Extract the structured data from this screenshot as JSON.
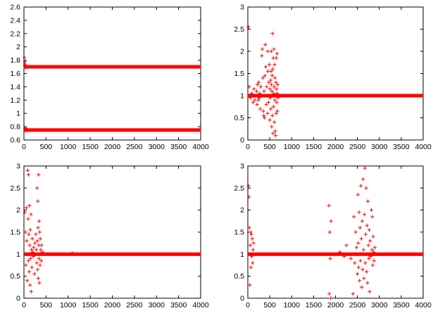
{
  "chart_data": [
    {
      "type": "scatter",
      "title": "",
      "xlabel": "",
      "ylabel": "",
      "marker": "+",
      "color": "#ff0000",
      "xlim": [
        0,
        4000
      ],
      "ylim": [
        0.6,
        2.6
      ],
      "xticks": [
        "0",
        "500",
        "1000",
        "1500",
        "2000",
        "2500",
        "3000",
        "3500",
        "4000"
      ],
      "yticks": [
        "0.6",
        "0.8",
        "1",
        "1.2",
        "1.4",
        "1.6",
        "1.8",
        "2",
        "2.2",
        "2.4",
        "2.6"
      ],
      "bands": [
        {
          "y": 1.7,
          "x_start": 0,
          "x_end": 4000
        },
        {
          "y": 0.75,
          "x_start": 0,
          "x_end": 4000
        }
      ],
      "points": [
        [
          10,
          1.84
        ],
        [
          20,
          1.78
        ],
        [
          30,
          1.74
        ],
        [
          15,
          1.72
        ],
        [
          40,
          1.69
        ],
        [
          25,
          0.77
        ],
        [
          50,
          0.74
        ],
        [
          35,
          0.78
        ]
      ]
    },
    {
      "type": "scatter",
      "title": "",
      "xlabel": "",
      "ylabel": "",
      "marker": "+",
      "color": "#ff0000",
      "xlim": [
        0,
        4000
      ],
      "ylim": [
        0,
        3
      ],
      "xticks": [
        "0",
        "500",
        "1000",
        "1500",
        "2000",
        "2500",
        "3000",
        "3500",
        "4000"
      ],
      "yticks": [
        "0",
        "0.5",
        "1",
        "1.5",
        "2",
        "2.5",
        "3"
      ],
      "bands": [
        {
          "y": 1.0,
          "x_start": 0,
          "x_end": 4000
        }
      ],
      "points": [
        [
          15,
          2.55
        ],
        [
          30,
          1.2
        ],
        [
          60,
          0.95
        ],
        [
          90,
          1.05
        ],
        [
          120,
          0.85
        ],
        [
          140,
          1.15
        ],
        [
          160,
          0.9
        ],
        [
          180,
          1.0
        ],
        [
          200,
          1.1
        ],
        [
          210,
          0.8
        ],
        [
          220,
          1.25
        ],
        [
          240,
          0.9
        ],
        [
          250,
          1.3
        ],
        [
          260,
          0.95
        ],
        [
          270,
          1.05
        ],
        [
          285,
          0.7
        ],
        [
          295,
          1.2
        ],
        [
          320,
          1.9
        ],
        [
          330,
          2.05
        ],
        [
          345,
          1.4
        ],
        [
          355,
          0.65
        ],
        [
          365,
          0.55
        ],
        [
          370,
          1.1
        ],
        [
          380,
          0.5
        ],
        [
          390,
          1.45
        ],
        [
          400,
          2.15
        ],
        [
          410,
          1.65
        ],
        [
          420,
          0.8
        ],
        [
          430,
          1.2
        ],
        [
          440,
          1.0
        ],
        [
          450,
          0.6
        ],
        [
          455,
          2.0
        ],
        [
          460,
          1.55
        ],
        [
          470,
          0.85
        ],
        [
          480,
          1.3
        ],
        [
          490,
          1.7
        ],
        [
          500,
          0.45
        ],
        [
          505,
          1.15
        ],
        [
          510,
          0.95
        ],
        [
          520,
          1.35
        ],
        [
          525,
          0.7
        ],
        [
          530,
          1.55
        ],
        [
          535,
          2.0
        ],
        [
          540,
          1.25
        ],
        [
          545,
          0.3
        ],
        [
          550,
          1.1
        ],
        [
          555,
          1.45
        ],
        [
          560,
          0.55
        ],
        [
          565,
          2.4
        ],
        [
          570,
          1.6
        ],
        [
          575,
          0.15
        ],
        [
          580,
          1.85
        ],
        [
          585,
          0.75
        ],
        [
          590,
          1.05
        ],
        [
          595,
          2.05
        ],
        [
          600,
          1.2
        ],
        [
          605,
          0.4
        ],
        [
          610,
          1.7
        ],
        [
          615,
          0.9
        ],
        [
          620,
          1.4
        ],
        [
          625,
          0.2
        ],
        [
          630,
          1.0
        ],
        [
          635,
          0.1
        ],
        [
          640,
          1.3
        ],
        [
          645,
          0.6
        ],
        [
          650,
          1.85
        ],
        [
          655,
          1.15
        ],
        [
          660,
          0.85
        ],
        [
          665,
          1.95
        ],
        [
          670,
          1.05
        ],
        [
          675,
          0.65
        ],
        [
          680,
          1.25
        ],
        [
          690,
          0.95
        ]
      ]
    },
    {
      "type": "scatter",
      "title": "",
      "xlabel": "",
      "ylabel": "",
      "marker": "+",
      "color": "#ff0000",
      "xlim": [
        0,
        4000
      ],
      "ylim": [
        0,
        3
      ],
      "xticks": [
        "0",
        "500",
        "1000",
        "1500",
        "2000",
        "2500",
        "3000",
        "3500",
        "4000"
      ],
      "yticks": [
        "0",
        "0.5",
        "1",
        "1.5",
        "2",
        "2.5",
        "3"
      ],
      "bands": [
        {
          "y": 1.0,
          "x_start": 0,
          "x_end": 4000
        }
      ],
      "points": [
        [
          20,
          1.95
        ],
        [
          35,
          1.5
        ],
        [
          45,
          0.75
        ],
        [
          55,
          2.05
        ],
        [
          65,
          1.3
        ],
        [
          75,
          0.4
        ],
        [
          85,
          2.9
        ],
        [
          95,
          1.8
        ],
        [
          100,
          0.85
        ],
        [
          105,
          2.8
        ],
        [
          110,
          1.45
        ],
        [
          120,
          0.6
        ],
        [
          125,
          2.1
        ],
        [
          130,
          1.2
        ],
        [
          140,
          0.3
        ],
        [
          145,
          1.55
        ],
        [
          150,
          0.9
        ],
        [
          160,
          1.9
        ],
        [
          165,
          0.15
        ],
        [
          170,
          1.1
        ],
        [
          180,
          0.7
        ],
        [
          190,
          1.35
        ],
        [
          200,
          1.05
        ],
        [
          210,
          0.95
        ],
        [
          220,
          1.15
        ],
        [
          240,
          0.55
        ],
        [
          250,
          1.25
        ],
        [
          270,
          1.45
        ],
        [
          280,
          1.1
        ],
        [
          290,
          0.8
        ],
        [
          300,
          2.5
        ],
        [
          305,
          1.3
        ],
        [
          310,
          0.65
        ],
        [
          315,
          2.2
        ],
        [
          320,
          1.6
        ],
        [
          325,
          0.45
        ],
        [
          330,
          2.8
        ],
        [
          335,
          1.2
        ],
        [
          340,
          0.9
        ],
        [
          345,
          1.75
        ],
        [
          350,
          0.35
        ],
        [
          355,
          1.5
        ],
        [
          360,
          1.0
        ],
        [
          365,
          0.75
        ],
        [
          370,
          1.35
        ],
        [
          380,
          1.1
        ],
        [
          390,
          0.85
        ],
        [
          400,
          1.2
        ],
        [
          420,
          1.05
        ],
        [
          1090,
          1.03
        ]
      ]
    },
    {
      "type": "scatter",
      "title": "",
      "xlabel": "",
      "ylabel": "",
      "marker": "+",
      "color": "#ff0000",
      "xlim": [
        0,
        4000
      ],
      "ylim": [
        0,
        3
      ],
      "xticks": [
        "0",
        "500",
        "1000",
        "1500",
        "2000",
        "2500",
        "3000",
        "3500",
        "4000"
      ],
      "yticks": [
        "0",
        "0.5",
        "1",
        "1.5",
        "2",
        "2.5",
        "3"
      ],
      "bands": [
        {
          "y": 1.0,
          "x_start": 0,
          "x_end": 4000
        }
      ],
      "points": [
        [
          15,
          2.55
        ],
        [
          25,
          2.3
        ],
        [
          35,
          1.6
        ],
        [
          45,
          0.3
        ],
        [
          55,
          1.2
        ],
        [
          65,
          1.5
        ],
        [
          70,
          0.7
        ],
        [
          80,
          1.45
        ],
        [
          90,
          0.95
        ],
        [
          100,
          1.35
        ],
        [
          110,
          0.8
        ],
        [
          120,
          1.1
        ],
        [
          130,
          1.25
        ],
        [
          1850,
          2.1
        ],
        [
          1860,
          0.1
        ],
        [
          1870,
          1.5
        ],
        [
          1880,
          0.9
        ],
        [
          1890,
          0.0
        ],
        [
          1900,
          1.75
        ],
        [
          2000,
          1.0
        ],
        [
          2100,
          1.05
        ],
        [
          2200,
          0.95
        ],
        [
          2250,
          1.2
        ],
        [
          2300,
          1.0
        ],
        [
          2350,
          0.9
        ],
        [
          2400,
          0.1
        ],
        [
          2420,
          1.85
        ],
        [
          2440,
          0.8
        ],
        [
          2460,
          1.5
        ],
        [
          2480,
          1.15
        ],
        [
          2500,
          0.55
        ],
        [
          2510,
          2.35
        ],
        [
          2520,
          1.25
        ],
        [
          2530,
          0.7
        ],
        [
          2540,
          1.95
        ],
        [
          2550,
          0.4
        ],
        [
          2560,
          1.6
        ],
        [
          2570,
          0.85
        ],
        [
          2580,
          2.55
        ],
        [
          2590,
          1.35
        ],
        [
          2600,
          0.25
        ],
        [
          2610,
          1.75
        ],
        [
          2620,
          0.65
        ],
        [
          2630,
          2.7
        ],
        [
          2640,
          1.1
        ],
        [
          2650,
          0.45
        ],
        [
          2660,
          1.9
        ],
        [
          2670,
          2.95
        ],
        [
          2680,
          0.8
        ],
        [
          2690,
          1.45
        ],
        [
          2700,
          2.5
        ],
        [
          2710,
          0.6
        ],
        [
          2720,
          1.65
        ],
        [
          2730,
          0.35
        ],
        [
          2740,
          2.2
        ],
        [
          2750,
          1.2
        ],
        [
          2760,
          0.9
        ],
        [
          2770,
          1.55
        ],
        [
          2780,
          0.15
        ],
        [
          2790,
          1.3
        ],
        [
          2800,
          0.95
        ],
        [
          2820,
          2.0
        ],
        [
          2830,
          1.1
        ],
        [
          2840,
          1.85
        ],
        [
          2850,
          0.75
        ],
        [
          2860,
          1.4
        ],
        [
          2870,
          1.05
        ],
        [
          2880,
          0.85
        ],
        [
          2900,
          1.15
        ]
      ]
    }
  ]
}
